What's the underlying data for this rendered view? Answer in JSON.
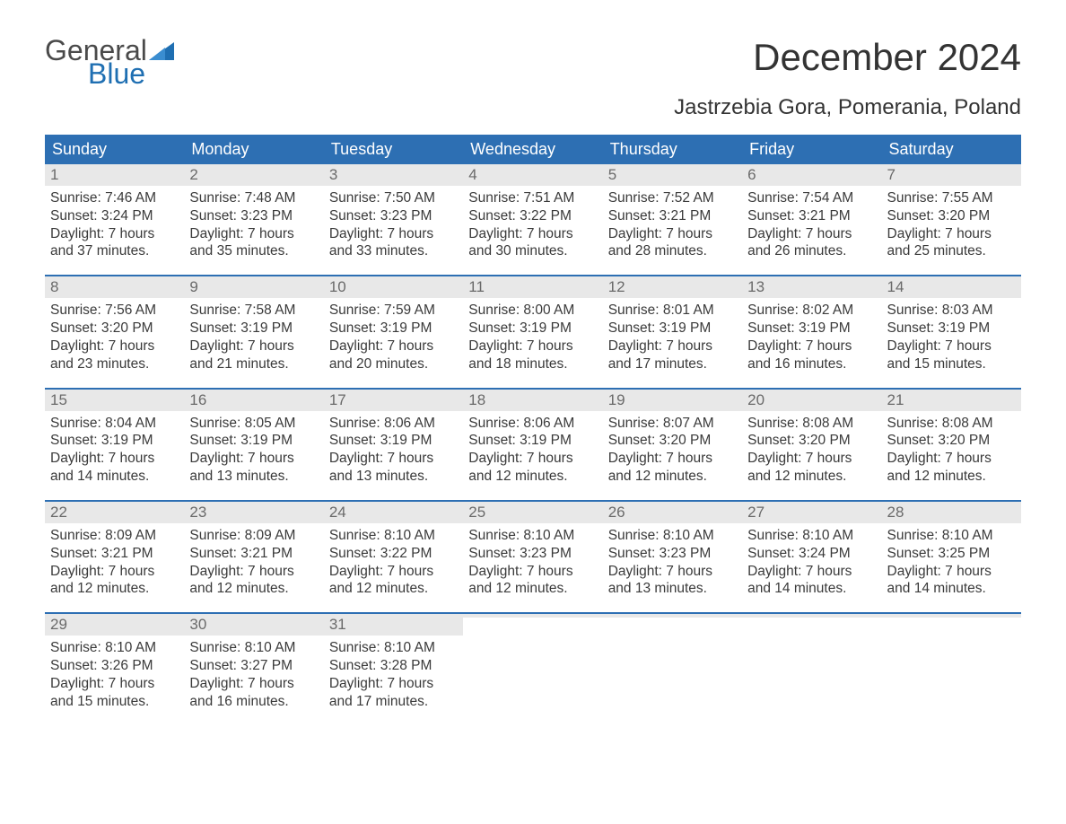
{
  "logo": {
    "text_general": "General",
    "text_blue": "Blue",
    "flag_color": "#1f6fb2"
  },
  "title": "December 2024",
  "subtitle": "Jastrzebia Gora, Pomerania, Poland",
  "colors": {
    "header_bg": "#2d6fb3",
    "header_text": "#ffffff",
    "daynum_bg": "#e8e8e8",
    "daynum_text": "#6a6a6a",
    "body_text": "#3a3a3a",
    "week_border": "#2d6fb3",
    "page_bg": "#ffffff"
  },
  "typography": {
    "title_fontsize": 42,
    "subtitle_fontsize": 24,
    "dow_fontsize": 18,
    "daynum_fontsize": 17,
    "body_fontsize": 15.5,
    "font_family": "Arial"
  },
  "calendar": {
    "days_of_week": [
      "Sunday",
      "Monday",
      "Tuesday",
      "Wednesday",
      "Thursday",
      "Friday",
      "Saturday"
    ],
    "weeks": [
      [
        {
          "num": "1",
          "sunrise": "Sunrise: 7:46 AM",
          "sunset": "Sunset: 3:24 PM",
          "day1": "Daylight: 7 hours",
          "day2": "and 37 minutes."
        },
        {
          "num": "2",
          "sunrise": "Sunrise: 7:48 AM",
          "sunset": "Sunset: 3:23 PM",
          "day1": "Daylight: 7 hours",
          "day2": "and 35 minutes."
        },
        {
          "num": "3",
          "sunrise": "Sunrise: 7:50 AM",
          "sunset": "Sunset: 3:23 PM",
          "day1": "Daylight: 7 hours",
          "day2": "and 33 minutes."
        },
        {
          "num": "4",
          "sunrise": "Sunrise: 7:51 AM",
          "sunset": "Sunset: 3:22 PM",
          "day1": "Daylight: 7 hours",
          "day2": "and 30 minutes."
        },
        {
          "num": "5",
          "sunrise": "Sunrise: 7:52 AM",
          "sunset": "Sunset: 3:21 PM",
          "day1": "Daylight: 7 hours",
          "day2": "and 28 minutes."
        },
        {
          "num": "6",
          "sunrise": "Sunrise: 7:54 AM",
          "sunset": "Sunset: 3:21 PM",
          "day1": "Daylight: 7 hours",
          "day2": "and 26 minutes."
        },
        {
          "num": "7",
          "sunrise": "Sunrise: 7:55 AM",
          "sunset": "Sunset: 3:20 PM",
          "day1": "Daylight: 7 hours",
          "day2": "and 25 minutes."
        }
      ],
      [
        {
          "num": "8",
          "sunrise": "Sunrise: 7:56 AM",
          "sunset": "Sunset: 3:20 PM",
          "day1": "Daylight: 7 hours",
          "day2": "and 23 minutes."
        },
        {
          "num": "9",
          "sunrise": "Sunrise: 7:58 AM",
          "sunset": "Sunset: 3:19 PM",
          "day1": "Daylight: 7 hours",
          "day2": "and 21 minutes."
        },
        {
          "num": "10",
          "sunrise": "Sunrise: 7:59 AM",
          "sunset": "Sunset: 3:19 PM",
          "day1": "Daylight: 7 hours",
          "day2": "and 20 minutes."
        },
        {
          "num": "11",
          "sunrise": "Sunrise: 8:00 AM",
          "sunset": "Sunset: 3:19 PM",
          "day1": "Daylight: 7 hours",
          "day2": "and 18 minutes."
        },
        {
          "num": "12",
          "sunrise": "Sunrise: 8:01 AM",
          "sunset": "Sunset: 3:19 PM",
          "day1": "Daylight: 7 hours",
          "day2": "and 17 minutes."
        },
        {
          "num": "13",
          "sunrise": "Sunrise: 8:02 AM",
          "sunset": "Sunset: 3:19 PM",
          "day1": "Daylight: 7 hours",
          "day2": "and 16 minutes."
        },
        {
          "num": "14",
          "sunrise": "Sunrise: 8:03 AM",
          "sunset": "Sunset: 3:19 PM",
          "day1": "Daylight: 7 hours",
          "day2": "and 15 minutes."
        }
      ],
      [
        {
          "num": "15",
          "sunrise": "Sunrise: 8:04 AM",
          "sunset": "Sunset: 3:19 PM",
          "day1": "Daylight: 7 hours",
          "day2": "and 14 minutes."
        },
        {
          "num": "16",
          "sunrise": "Sunrise: 8:05 AM",
          "sunset": "Sunset: 3:19 PM",
          "day1": "Daylight: 7 hours",
          "day2": "and 13 minutes."
        },
        {
          "num": "17",
          "sunrise": "Sunrise: 8:06 AM",
          "sunset": "Sunset: 3:19 PM",
          "day1": "Daylight: 7 hours",
          "day2": "and 13 minutes."
        },
        {
          "num": "18",
          "sunrise": "Sunrise: 8:06 AM",
          "sunset": "Sunset: 3:19 PM",
          "day1": "Daylight: 7 hours",
          "day2": "and 12 minutes."
        },
        {
          "num": "19",
          "sunrise": "Sunrise: 8:07 AM",
          "sunset": "Sunset: 3:20 PM",
          "day1": "Daylight: 7 hours",
          "day2": "and 12 minutes."
        },
        {
          "num": "20",
          "sunrise": "Sunrise: 8:08 AM",
          "sunset": "Sunset: 3:20 PM",
          "day1": "Daylight: 7 hours",
          "day2": "and 12 minutes."
        },
        {
          "num": "21",
          "sunrise": "Sunrise: 8:08 AM",
          "sunset": "Sunset: 3:20 PM",
          "day1": "Daylight: 7 hours",
          "day2": "and 12 minutes."
        }
      ],
      [
        {
          "num": "22",
          "sunrise": "Sunrise: 8:09 AM",
          "sunset": "Sunset: 3:21 PM",
          "day1": "Daylight: 7 hours",
          "day2": "and 12 minutes."
        },
        {
          "num": "23",
          "sunrise": "Sunrise: 8:09 AM",
          "sunset": "Sunset: 3:21 PM",
          "day1": "Daylight: 7 hours",
          "day2": "and 12 minutes."
        },
        {
          "num": "24",
          "sunrise": "Sunrise: 8:10 AM",
          "sunset": "Sunset: 3:22 PM",
          "day1": "Daylight: 7 hours",
          "day2": "and 12 minutes."
        },
        {
          "num": "25",
          "sunrise": "Sunrise: 8:10 AM",
          "sunset": "Sunset: 3:23 PM",
          "day1": "Daylight: 7 hours",
          "day2": "and 12 minutes."
        },
        {
          "num": "26",
          "sunrise": "Sunrise: 8:10 AM",
          "sunset": "Sunset: 3:23 PM",
          "day1": "Daylight: 7 hours",
          "day2": "and 13 minutes."
        },
        {
          "num": "27",
          "sunrise": "Sunrise: 8:10 AM",
          "sunset": "Sunset: 3:24 PM",
          "day1": "Daylight: 7 hours",
          "day2": "and 14 minutes."
        },
        {
          "num": "28",
          "sunrise": "Sunrise: 8:10 AM",
          "sunset": "Sunset: 3:25 PM",
          "day1": "Daylight: 7 hours",
          "day2": "and 14 minutes."
        }
      ],
      [
        {
          "num": "29",
          "sunrise": "Sunrise: 8:10 AM",
          "sunset": "Sunset: 3:26 PM",
          "day1": "Daylight: 7 hours",
          "day2": "and 15 minutes."
        },
        {
          "num": "30",
          "sunrise": "Sunrise: 8:10 AM",
          "sunset": "Sunset: 3:27 PM",
          "day1": "Daylight: 7 hours",
          "day2": "and 16 minutes."
        },
        {
          "num": "31",
          "sunrise": "Sunrise: 8:10 AM",
          "sunset": "Sunset: 3:28 PM",
          "day1": "Daylight: 7 hours",
          "day2": "and 17 minutes."
        },
        {
          "empty": true
        },
        {
          "empty": true
        },
        {
          "empty": true
        },
        {
          "empty": true
        }
      ]
    ]
  }
}
